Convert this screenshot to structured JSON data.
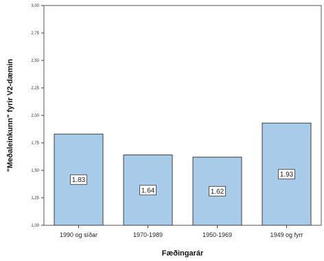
{
  "chart_data": {
    "type": "bar",
    "categories": [
      "1990 og síðar",
      "1970-1989",
      "1950-1969",
      "1949 og fyrr"
    ],
    "values": [
      1.83,
      1.64,
      1.62,
      1.93
    ],
    "data_labels": [
      "1.83",
      "1.64",
      "1.62",
      "1.93"
    ],
    "xlabel": "Fæðingarár",
    "ylabel": "\"Meðaleinkunn\" fyrir V2-dæmin",
    "ylim": [
      1.0,
      3.0
    ],
    "yticks": [
      1.0,
      1.25,
      1.5,
      1.75,
      2.0,
      2.25,
      2.5,
      2.75,
      3.0
    ],
    "ytick_labels": [
      "1,00",
      "1,25",
      "1,50",
      "1,75",
      "2,00",
      "2,25",
      "2,50",
      "2,75",
      "3,00"
    ],
    "grid": false,
    "colors": {
      "bar_fill": "#a9cbea",
      "bar_stroke": "#3c3c3c",
      "axis": "#444444"
    }
  }
}
